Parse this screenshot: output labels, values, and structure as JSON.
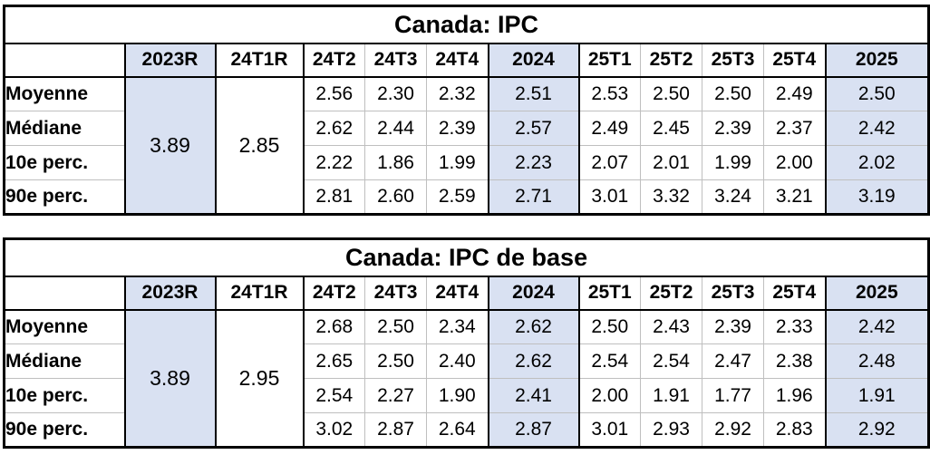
{
  "page": {
    "background_color": "#ffffff",
    "highlight_color": "#d9e1f2",
    "gridline_color": "#bfbfbf",
    "border_color": "#000000"
  },
  "chart_data": [
    {
      "type": "table",
      "title": "Canada: IPC",
      "column_headers": [
        "",
        "2023R",
        "24T1R",
        "24T2",
        "24T3",
        "24T4",
        "2024",
        "25T1",
        "25T2",
        "25T3",
        "25T4",
        "2025"
      ],
      "highlighted_columns": [
        "2023R",
        "2024",
        "2025"
      ],
      "merged_cells": [
        {
          "column": "2023R",
          "value": "3.89",
          "highlighted": true
        },
        {
          "column": "24T1R",
          "value": "2.85",
          "highlighted": false
        }
      ],
      "rows": [
        {
          "label": "Moyenne",
          "values": [
            "2.56",
            "2.30",
            "2.32",
            "2.51",
            "2.53",
            "2.50",
            "2.50",
            "2.49",
            "2.50"
          ]
        },
        {
          "label": "Médiane",
          "values": [
            "2.62",
            "2.44",
            "2.39",
            "2.57",
            "2.49",
            "2.45",
            "2.39",
            "2.37",
            "2.42"
          ]
        },
        {
          "label": "10e perc.",
          "values": [
            "2.22",
            "1.86",
            "1.99",
            "2.23",
            "2.07",
            "2.01",
            "1.99",
            "2.00",
            "2.02"
          ]
        },
        {
          "label": "90e perc.",
          "values": [
            "2.81",
            "2.60",
            "2.59",
            "2.71",
            "3.01",
            "3.32",
            "3.24",
            "3.21",
            "3.19"
          ]
        }
      ]
    },
    {
      "type": "table",
      "title": "Canada: IPC de base",
      "column_headers": [
        "",
        "2023R",
        "24T1R",
        "24T2",
        "24T3",
        "24T4",
        "2024",
        "25T1",
        "25T2",
        "25T3",
        "25T4",
        "2025"
      ],
      "highlighted_columns": [
        "2023R",
        "2024",
        "2025"
      ],
      "merged_cells": [
        {
          "column": "2023R",
          "value": "3.89",
          "highlighted": true
        },
        {
          "column": "24T1R",
          "value": "2.95",
          "highlighted": false
        }
      ],
      "rows": [
        {
          "label": "Moyenne",
          "values": [
            "2.68",
            "2.50",
            "2.34",
            "2.62",
            "2.50",
            "2.43",
            "2.39",
            "2.33",
            "2.42"
          ]
        },
        {
          "label": "Médiane",
          "values": [
            "2.65",
            "2.50",
            "2.40",
            "2.62",
            "2.54",
            "2.54",
            "2.47",
            "2.38",
            "2.48"
          ]
        },
        {
          "label": "10e perc.",
          "values": [
            "2.54",
            "2.27",
            "1.90",
            "2.41",
            "2.00",
            "1.91",
            "1.77",
            "1.96",
            "1.91"
          ]
        },
        {
          "label": "90e perc.",
          "values": [
            "3.02",
            "2.87",
            "2.64",
            "2.87",
            "3.01",
            "2.93",
            "2.92",
            "2.83",
            "2.92"
          ]
        }
      ]
    }
  ]
}
